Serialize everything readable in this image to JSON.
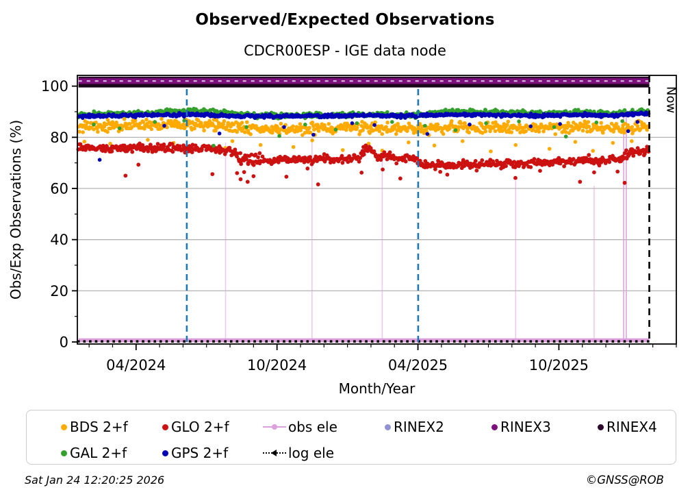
{
  "title": "Observed/Expected Observations",
  "subtitle": "CDCR00ESP - IGE data node",
  "now_label": "Now",
  "footer": {
    "timestamp": "Sat Jan 24 12:20:25 2026",
    "copyright": "©GNSS@ROB"
  },
  "legend": {
    "rows": [
      [
        {
          "label": "BDS 2+f",
          "color": "#ffaa00",
          "marker": "dot"
        },
        {
          "label": "GLO 2+f",
          "color": "#cc1111",
          "marker": "dot"
        },
        {
          "label": "obs ele",
          "color": "#dda0dd",
          "marker": "line-dot"
        },
        {
          "label": "RINEX2",
          "color": "#9191d3",
          "marker": "dot"
        },
        {
          "label": "RINEX3",
          "color": "#7d0f7d",
          "marker": "dot"
        },
        {
          "label": "RINEX4",
          "color": "#2d0a2d",
          "marker": "dot"
        }
      ],
      [
        {
          "label": "GAL 2+f",
          "color": "#33a02c",
          "marker": "dot"
        },
        {
          "label": "GPS 2+f",
          "color": "#0000b4",
          "marker": "dot"
        },
        {
          "label": "log ele",
          "color": "#000000",
          "marker": "dotted-caret"
        }
      ]
    ]
  },
  "chart_data": {
    "type": "scatter",
    "title": "Observed/Expected Observations",
    "subtitle": "CDCR00ESP - IGE data node",
    "xlabel": "Month/Year",
    "ylabel": "Obs/Exp Observations (%)",
    "x_unit": "months since 2024-01-01 (0 = Jan 1 2024), daily cadence",
    "x_axis": {
      "range": [
        0.5,
        26.0
      ],
      "major_ticks": [
        {
          "m": 3,
          "label": "04/2024"
        },
        {
          "m": 9,
          "label": "10/2024"
        },
        {
          "m": 15,
          "label": "04/2025"
        },
        {
          "m": 21,
          "label": "10/2025"
        }
      ],
      "minor_step": 1
    },
    "y_axis": {
      "range": [
        -0.8,
        104.2
      ],
      "major_ticks": [
        {
          "v": 0,
          "label": "0"
        },
        {
          "v": 20,
          "label": "20"
        },
        {
          "v": 40,
          "label": "40"
        },
        {
          "v": 60,
          "label": "60"
        },
        {
          "v": 80,
          "label": "80"
        },
        {
          "v": 100,
          "label": "100"
        }
      ],
      "minor_ticks": [
        10,
        30,
        50,
        70,
        90
      ],
      "grid_values": [
        20,
        40,
        60,
        80
      ],
      "grid_color": "#b3b3b3"
    },
    "data_span": [
      0.55,
      24.85
    ],
    "events": {
      "color": "#1f77b4",
      "dash": [
        9,
        6
      ],
      "x": [
        5.16,
        15.01
      ],
      "v_from": 0,
      "v_to": 100
    },
    "now": {
      "x": 24.85,
      "color": "#000000",
      "dash": [
        10,
        7
      ],
      "label": "Now"
    },
    "rinex_band": {
      "value": 102,
      "half_width_pct": 1.3,
      "rinex4_color": "#2a062a",
      "rinex3_color": "#7d0f7d",
      "rinex2_color": "#d9c7ea",
      "note": "RINEX2 + RINEX3 + RINEX4 availability overlapping at ~102%"
    },
    "line_100": {
      "value": 100,
      "color": "#1a061a",
      "width": 4,
      "note": "RINEX4 at 100%"
    },
    "obs_ele": {
      "color": "#dda0dd",
      "baseline_value": 0,
      "spikes": [
        [
          6.81,
          78
        ],
        [
          10.49,
          80
        ],
        [
          13.48,
          74
        ],
        [
          19.16,
          63
        ],
        [
          22.5,
          61
        ],
        [
          23.76,
          88.8
        ],
        [
          23.87,
          89.5
        ]
      ],
      "marker_point": [
        23.8,
        89.8
      ]
    },
    "log_ele": {
      "color": "#000000",
      "value": 0,
      "marker": "square",
      "spacing_months": 0.25
    },
    "series": [
      {
        "name": "BDS 2+f",
        "color": "#ffaa00",
        "r": 2.8,
        "sd": 1.05,
        "mean": [
          [
            0.55,
            84.2
          ],
          [
            2,
            84.5
          ],
          [
            3.5,
            84.8
          ],
          [
            5,
            85.2
          ],
          [
            5.8,
            84.9
          ],
          [
            7,
            84.0
          ],
          [
            8,
            83.4
          ],
          [
            9,
            83.3
          ],
          [
            10,
            83.4
          ],
          [
            11,
            83.5
          ],
          [
            12,
            83.8
          ],
          [
            13,
            83.4
          ],
          [
            14,
            83.2
          ],
          [
            15,
            83.2
          ],
          [
            16,
            83.7
          ],
          [
            17,
            84.0
          ],
          [
            18,
            83.8
          ],
          [
            19,
            83.6
          ],
          [
            20,
            83.5
          ],
          [
            21,
            83.8
          ],
          [
            22,
            84.0
          ],
          [
            23,
            83.6
          ],
          [
            24,
            83.9
          ],
          [
            24.85,
            84.3
          ]
        ],
        "outliers": [
          [
            0.8,
            78.3
          ],
          [
            1.9,
            77.5
          ],
          [
            3.5,
            79.0
          ],
          [
            4.6,
            77.8
          ],
          [
            5.9,
            76.5
          ],
          [
            6.8,
            75.8
          ],
          [
            7.1,
            78.5
          ],
          [
            8.3,
            77.0
          ],
          [
            9.7,
            76.2
          ],
          [
            10.5,
            78.8
          ],
          [
            11.8,
            75.0
          ],
          [
            12.9,
            77.5
          ],
          [
            13.48,
            74.8
          ],
          [
            14.6,
            78.0
          ],
          [
            15.7,
            76.8
          ],
          [
            16.9,
            78.5
          ],
          [
            18.1,
            74.5
          ],
          [
            19.16,
            77.0
          ],
          [
            20.6,
            75.5
          ],
          [
            21.7,
            78.2
          ],
          [
            22.45,
            74.7
          ],
          [
            23.3,
            77.8
          ],
          [
            24.1,
            78.5
          ]
        ]
      },
      {
        "name": "GLO 2+f",
        "color": "#cc1111",
        "r": 2.9,
        "sd": 0.75,
        "sd_boost": {
          "from": 7.2,
          "to": 8.4,
          "factor": 1.8
        },
        "mean": [
          [
            0.55,
            75.9
          ],
          [
            2,
            75.7
          ],
          [
            3,
            75.9
          ],
          [
            4,
            75.6
          ],
          [
            4.8,
            75.9
          ],
          [
            5.5,
            75.2
          ],
          [
            6.2,
            75.6
          ],
          [
            7.0,
            75.1
          ],
          [
            7.25,
            73.0
          ],
          [
            7.5,
            71.2
          ],
          [
            7.8,
            71.8
          ],
          [
            8.1,
            70.6
          ],
          [
            8.45,
            71.3
          ],
          [
            8.8,
            70.7
          ],
          [
            9.2,
            71.6
          ],
          [
            9.6,
            70.9
          ],
          [
            10,
            71.4
          ],
          [
            10.4,
            70.7
          ],
          [
            10.9,
            71.8
          ],
          [
            11.3,
            71.0
          ],
          [
            11.7,
            71.6
          ],
          [
            12.1,
            71.9
          ],
          [
            12.5,
            72.3
          ],
          [
            12.8,
            75.3
          ],
          [
            13.1,
            74.2
          ],
          [
            13.3,
            72.0
          ],
          [
            13.7,
            72.6
          ],
          [
            14.1,
            71.6
          ],
          [
            14.5,
            72.2
          ],
          [
            14.97,
            71.4
          ],
          [
            15.1,
            69.8
          ],
          [
            15.5,
            69.0
          ],
          [
            16,
            69.6
          ],
          [
            16.5,
            68.8
          ],
          [
            17,
            69.4
          ],
          [
            17.5,
            68.9
          ],
          [
            18,
            69.7
          ],
          [
            18.5,
            69.4
          ],
          [
            19,
            70.1
          ],
          [
            19.5,
            69.7
          ],
          [
            20,
            70.3
          ],
          [
            20.5,
            69.9
          ],
          [
            21,
            70.6
          ],
          [
            21.4,
            70.1
          ],
          [
            21.9,
            70.8
          ],
          [
            22.3,
            71.3
          ],
          [
            22.7,
            70.4
          ],
          [
            23,
            71.0
          ],
          [
            23.35,
            71.7
          ],
          [
            23.6,
            70.6
          ],
          [
            23.85,
            73.2
          ],
          [
            24.1,
            74.6
          ],
          [
            24.4,
            73.9
          ],
          [
            24.85,
            75.6
          ]
        ],
        "outliers": [
          [
            2.55,
            65.0
          ],
          [
            3.1,
            69.3
          ],
          [
            6.25,
            65.6
          ],
          [
            7.3,
            66.0
          ],
          [
            7.45,
            63.6
          ],
          [
            7.6,
            66.4
          ],
          [
            7.75,
            62.6
          ],
          [
            8.0,
            64.8
          ],
          [
            9.4,
            64.6
          ],
          [
            10.3,
            67.8
          ],
          [
            10.75,
            61.6
          ],
          [
            12.6,
            66.2
          ],
          [
            12.68,
            76.2
          ],
          [
            12.78,
            76.8
          ],
          [
            12.9,
            75.8
          ],
          [
            13.5,
            67.4
          ],
          [
            14.25,
            63.9
          ],
          [
            15.95,
            66.5
          ],
          [
            16.25,
            65.4
          ],
          [
            17.5,
            67.0
          ],
          [
            19.15,
            64.1
          ],
          [
            20.2,
            66.9
          ],
          [
            21.9,
            62.6
          ],
          [
            22.5,
            66.3
          ],
          [
            23.5,
            66.6
          ],
          [
            23.8,
            62.2
          ]
        ]
      },
      {
        "name": "GAL 2+f",
        "color": "#33a02c",
        "r": 2.8,
        "sd": 0.5,
        "mean": [
          [
            0.55,
            88.9
          ],
          [
            2,
            89.1
          ],
          [
            3.5,
            89.4
          ],
          [
            4.8,
            90.2
          ],
          [
            5.4,
            90.6
          ],
          [
            6.2,
            89.9
          ],
          [
            7,
            89.2
          ],
          [
            8,
            88.6
          ],
          [
            9,
            88.4
          ],
          [
            10,
            88.6
          ],
          [
            11,
            88.4
          ],
          [
            12,
            88.8
          ],
          [
            13,
            89.0
          ],
          [
            14,
            88.5
          ],
          [
            15,
            88.7
          ],
          [
            15.9,
            89.8
          ],
          [
            17,
            89.9
          ],
          [
            18,
            89.7
          ],
          [
            19,
            89.5
          ],
          [
            20,
            89.3
          ],
          [
            21,
            89.4
          ],
          [
            22,
            89.6
          ],
          [
            23,
            89.2
          ],
          [
            24,
            89.5
          ],
          [
            24.85,
            90.1
          ]
        ],
        "outliers": [
          [
            1.2,
            85.0
          ],
          [
            2.3,
            83.5
          ],
          [
            3.8,
            86.0
          ],
          [
            5.05,
            86.5
          ],
          [
            6.3,
            76.7
          ],
          [
            7.7,
            84.0
          ],
          [
            9.1,
            80.5
          ],
          [
            10.2,
            85.0
          ],
          [
            11.5,
            83.0
          ],
          [
            12.4,
            85.5
          ],
          [
            13.9,
            86.0
          ],
          [
            15.3,
            84.5
          ],
          [
            16.6,
            82.8
          ],
          [
            17.9,
            85.5
          ],
          [
            19.3,
            86.2
          ],
          [
            20.8,
            84.0
          ],
          [
            21.3,
            80.3
          ],
          [
            22.6,
            85.8
          ],
          [
            23.7,
            86.3
          ]
        ]
      },
      {
        "name": "GPS 2+f",
        "color": "#0000b4",
        "r": 2.8,
        "sd": 0.32,
        "mean": [
          [
            0.55,
            88.2
          ],
          [
            2,
            88.4
          ],
          [
            3.5,
            88.6
          ],
          [
            5,
            88.8
          ],
          [
            6,
            88.6
          ],
          [
            7,
            88.4
          ],
          [
            8,
            88.3
          ],
          [
            9,
            88.2
          ],
          [
            10,
            88.4
          ],
          [
            11,
            88.3
          ],
          [
            12,
            88.5
          ],
          [
            13,
            88.6
          ],
          [
            14,
            88.3
          ],
          [
            15,
            88.4
          ],
          [
            16,
            88.8
          ],
          [
            17,
            88.9
          ],
          [
            18,
            88.8
          ],
          [
            19,
            88.6
          ],
          [
            20,
            88.5
          ],
          [
            21,
            88.7
          ],
          [
            22,
            88.8
          ],
          [
            23,
            88.6
          ],
          [
            24,
            88.8
          ],
          [
            24.85,
            89.2
          ]
        ],
        "outliers": [
          [
            1.45,
            71.2
          ],
          [
            4.2,
            84.5
          ],
          [
            6.55,
            81.5
          ],
          [
            9.3,
            84.0
          ],
          [
            10.55,
            81.0
          ],
          [
            12.2,
            85.5
          ],
          [
            13.15,
            84.8
          ],
          [
            15.4,
            81.3
          ],
          [
            17.2,
            85.0
          ],
          [
            19.8,
            84.3
          ],
          [
            21.05,
            85.2
          ],
          [
            23.95,
            82.4
          ],
          [
            24.35,
            86.0
          ]
        ]
      }
    ],
    "legend_position": "below",
    "grid": "horizontal-only"
  }
}
